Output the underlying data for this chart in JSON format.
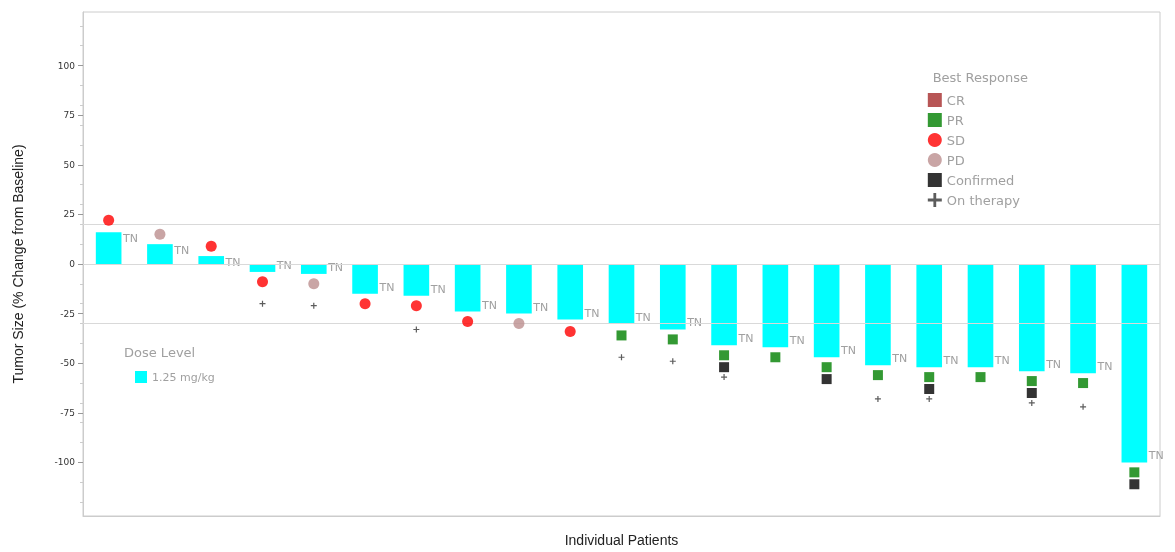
{
  "chart_data": {
    "type": "bar",
    "xlabel": "Individual Patients",
    "ylabel": "Tumor Size (% Change from Baseline)",
    "legend_title": "Best Response",
    "legend": "top right",
    "annotations": [
      "Dose Level"
    ],
    "categories": [
      null,
      null,
      null,
      null,
      null,
      null,
      null,
      null,
      null,
      null,
      null,
      null,
      null,
      null,
      null,
      null,
      null,
      null,
      null,
      null,
      null
    ],
    "ylim": [
      -127,
      127
    ],
    "yticks": [
      -100,
      -75,
      -50,
      -25,
      0,
      25,
      50,
      75,
      100
    ],
    "grid": false,
    "ref_lines": [
      {
        "axis": "y",
        "value": 0,
        "color": "#d9d9d9"
      },
      {
        "axis": "y",
        "value": 20,
        "color": "#d9d9d9"
      },
      {
        "axis": "y",
        "value": -30,
        "color": "#d9d9d9"
      }
    ],
    "series": [
      {
        "name": "1.25 mg/kg",
        "color": "#00ffff",
        "values": [
          16,
          10,
          4,
          -4,
          -5,
          -15,
          -16,
          -24,
          -25,
          -28,
          -30,
          -33,
          -41,
          -42,
          -47,
          -51,
          -52,
          -52,
          -54,
          -55,
          -100
        ],
        "value_labels": [
          "TN",
          "TN",
          "TN",
          "TN",
          "TN",
          "TN",
          "TN",
          "TN",
          "TN",
          "TN",
          "TN",
          "TN",
          "TN",
          "TN",
          "TN",
          "TN",
          "TN",
          "TN",
          "TN",
          "TN",
          "TN"
        ]
      },
      {
        "name": "CR",
        "type": "scatter",
        "color": "#a52a2a",
        "marker": "square",
        "values": [
          null,
          null,
          null,
          null,
          null,
          null,
          null,
          null,
          null,
          null,
          null,
          null,
          null,
          null,
          null,
          null,
          null,
          null,
          null,
          null,
          null
        ]
      },
      {
        "name": "PR",
        "type": "scatter",
        "color": "#008000",
        "marker": "square",
        "values": [
          null,
          null,
          null,
          null,
          null,
          null,
          null,
          null,
          null,
          null,
          -36,
          -38,
          -46,
          -47,
          -52,
          -56,
          -57,
          -57,
          -59,
          -60,
          -105
        ]
      },
      {
        "name": "SD",
        "type": "scatter",
        "color": "#ff0000",
        "marker": "circle",
        "values": [
          22,
          null,
          9,
          -9,
          null,
          -20,
          -21,
          -29,
          null,
          -34,
          null,
          null,
          null,
          null,
          null,
          null,
          null,
          null,
          null,
          null,
          null
        ]
      },
      {
        "name": "PD",
        "type": "scatter",
        "color": "#bc8f8f",
        "marker": "circle",
        "values": [
          null,
          15,
          null,
          null,
          -10,
          null,
          null,
          null,
          -30,
          null,
          null,
          null,
          null,
          null,
          null,
          null,
          null,
          null,
          null,
          null,
          null
        ]
      },
      {
        "name": "Confirmed",
        "type": "scatter",
        "color": "#000000",
        "marker": "square",
        "values": [
          null,
          null,
          null,
          null,
          null,
          null,
          null,
          null,
          null,
          null,
          null,
          null,
          -52,
          null,
          -58,
          null,
          -63,
          null,
          -65,
          null,
          -111
        ]
      },
      {
        "name": "On therapy",
        "type": "scatter",
        "color": "#333333",
        "marker": "cross",
        "values": [
          null,
          null,
          null,
          -20,
          -21,
          null,
          -33,
          null,
          null,
          null,
          -47,
          -49,
          -57,
          null,
          null,
          -68,
          -68,
          null,
          -70,
          -72,
          null
        ]
      }
    ]
  }
}
